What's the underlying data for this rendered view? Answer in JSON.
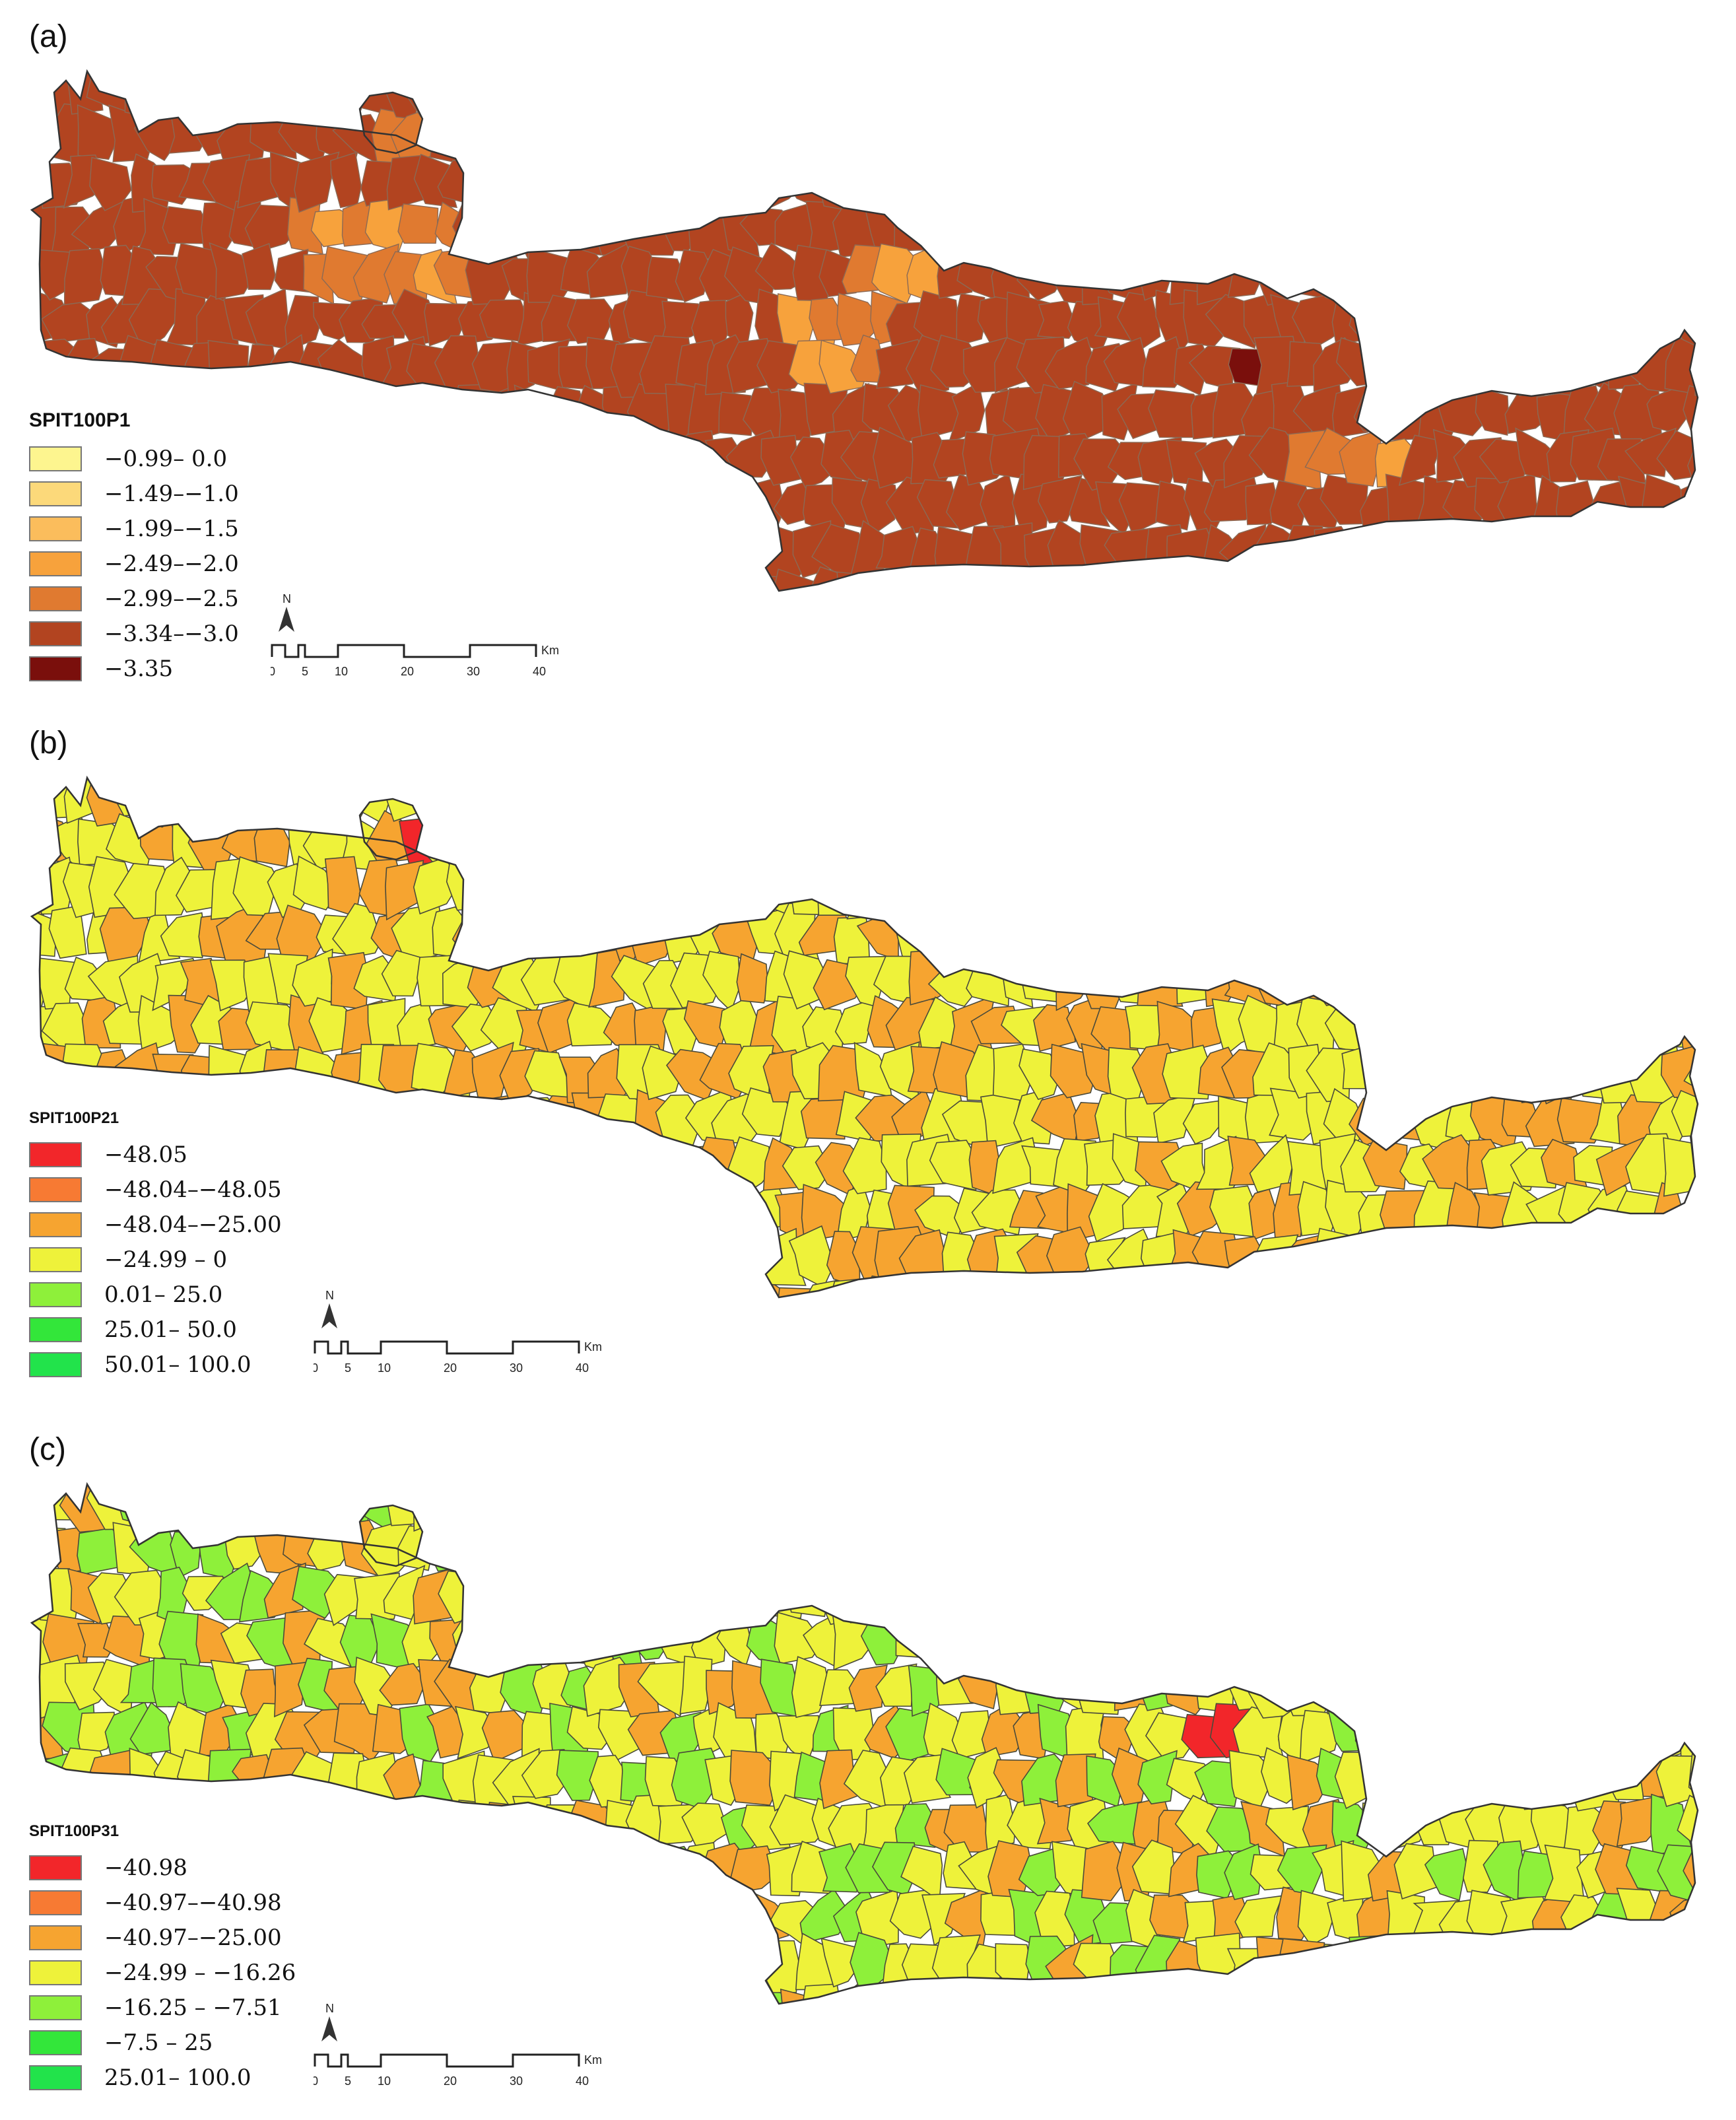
{
  "panels": [
    {
      "id": "a",
      "label": "(a)",
      "legend_title": "SPIT100P1",
      "legend": [
        {
          "label": "−0.99– 0.0",
          "color": "#fdf58f"
        },
        {
          "label": "−1.49–−1.0",
          "color": "#fcd97a"
        },
        {
          "label": "−1.99–−1.5",
          "color": "#fbbd5c"
        },
        {
          "label": "−2.49–−2.0",
          "color": "#f7a23c"
        },
        {
          "label": "−2.99–−2.5",
          "color": "#e07a30"
        },
        {
          "label": "−3.34–−3.0",
          "color": "#b24420"
        },
        {
          "label": "−3.35",
          "color": "#7a0f0c"
        }
      ],
      "base_color": "#b24420"
    },
    {
      "id": "b",
      "label": "(b)",
      "legend_title": "SPIT100P21",
      "legend": [
        {
          "label": "−48.05",
          "color": "#f2262a"
        },
        {
          "label": "−48.04–−48.05",
          "color": "#f77a33"
        },
        {
          "label": "−48.04–−25.00",
          "color": "#f6a430"
        },
        {
          "label": "−24.99 – 0",
          "color": "#eef23a"
        },
        {
          "label": "0.01– 25.0",
          "color": "#8ef03a"
        },
        {
          "label": "25.01– 50.0",
          "color": "#33e63a"
        },
        {
          "label": "50.01– 100.0",
          "color": "#22e34b"
        }
      ],
      "base_color": "#eef23a"
    },
    {
      "id": "c",
      "label": "(c)",
      "legend_title": "SPIT100P31",
      "legend": [
        {
          "label": "−40.98",
          "color": "#f2262a"
        },
        {
          "label": "−40.97–−40.98",
          "color": "#f77a33"
        },
        {
          "label": "−40.97–−25.00",
          "color": "#f6a430"
        },
        {
          "label": "−24.99 – −16.26",
          "color": "#eef23a"
        },
        {
          "label": "−16.25 – −7.51",
          "color": "#8ef03a"
        },
        {
          "label": "−7.5 – 25",
          "color": "#33e63a"
        },
        {
          "label": "25.01– 100.0",
          "color": "#22e34b"
        }
      ],
      "base_color": "#eef23a"
    }
  ],
  "scale": {
    "north_label": "N",
    "ticks": [
      "0",
      "5",
      "10",
      "20",
      "30",
      "40"
    ],
    "unit": "Km"
  }
}
